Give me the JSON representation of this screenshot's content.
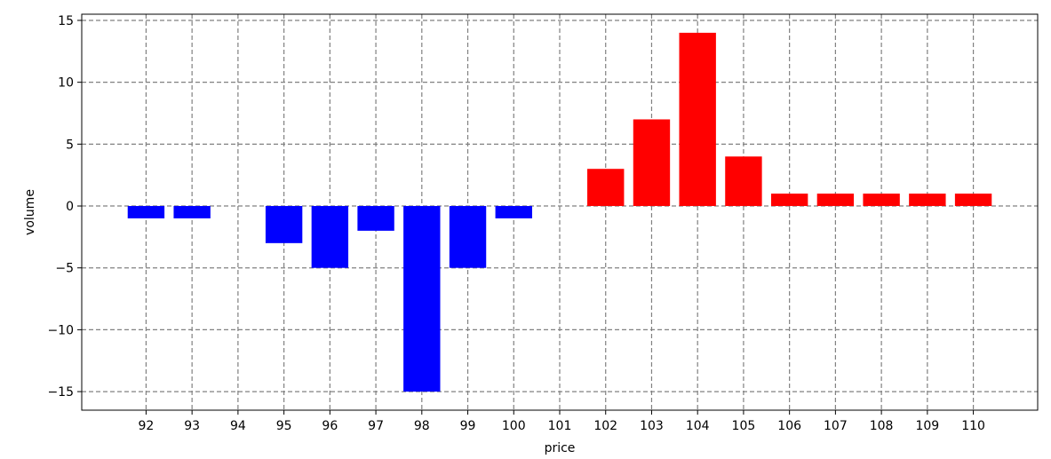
{
  "chart_data": {
    "type": "bar",
    "title": "",
    "xlabel": "price",
    "ylabel": "volume",
    "x_ticks": [
      "92",
      "93",
      "94",
      "95",
      "96",
      "97",
      "98",
      "99",
      "100",
      "101",
      "102",
      "103",
      "104",
      "105",
      "106",
      "107",
      "108",
      "109",
      "110"
    ],
    "y_ticks": [
      "−15",
      "−10",
      "−5",
      "0",
      "5",
      "10",
      "15"
    ],
    "xlim": [
      90.6,
      111.4
    ],
    "ylim": [
      -16.5,
      15.5
    ],
    "grid": true,
    "bars": [
      {
        "x": 92,
        "value": -1,
        "color": "#0000ff"
      },
      {
        "x": 93,
        "value": -1,
        "color": "#0000ff"
      },
      {
        "x": 95,
        "value": -3,
        "color": "#0000ff"
      },
      {
        "x": 96,
        "value": -5,
        "color": "#0000ff"
      },
      {
        "x": 97,
        "value": -2,
        "color": "#0000ff"
      },
      {
        "x": 98,
        "value": -15,
        "color": "#0000ff"
      },
      {
        "x": 99,
        "value": -5,
        "color": "#0000ff"
      },
      {
        "x": 100,
        "value": -1,
        "color": "#0000ff"
      },
      {
        "x": 102,
        "value": 3,
        "color": "#ff0000"
      },
      {
        "x": 103,
        "value": 7,
        "color": "#ff0000"
      },
      {
        "x": 104,
        "value": 14,
        "color": "#ff0000"
      },
      {
        "x": 105,
        "value": 4,
        "color": "#ff0000"
      },
      {
        "x": 106,
        "value": 1,
        "color": "#ff0000"
      },
      {
        "x": 107,
        "value": 1,
        "color": "#ff0000"
      },
      {
        "x": 108,
        "value": 1,
        "color": "#ff0000"
      },
      {
        "x": 109,
        "value": 1,
        "color": "#ff0000"
      },
      {
        "x": 110,
        "value": 1,
        "color": "#ff0000"
      }
    ],
    "colors": {
      "bid": "#0000ff",
      "ask": "#ff0000",
      "grid": "#808080"
    }
  }
}
